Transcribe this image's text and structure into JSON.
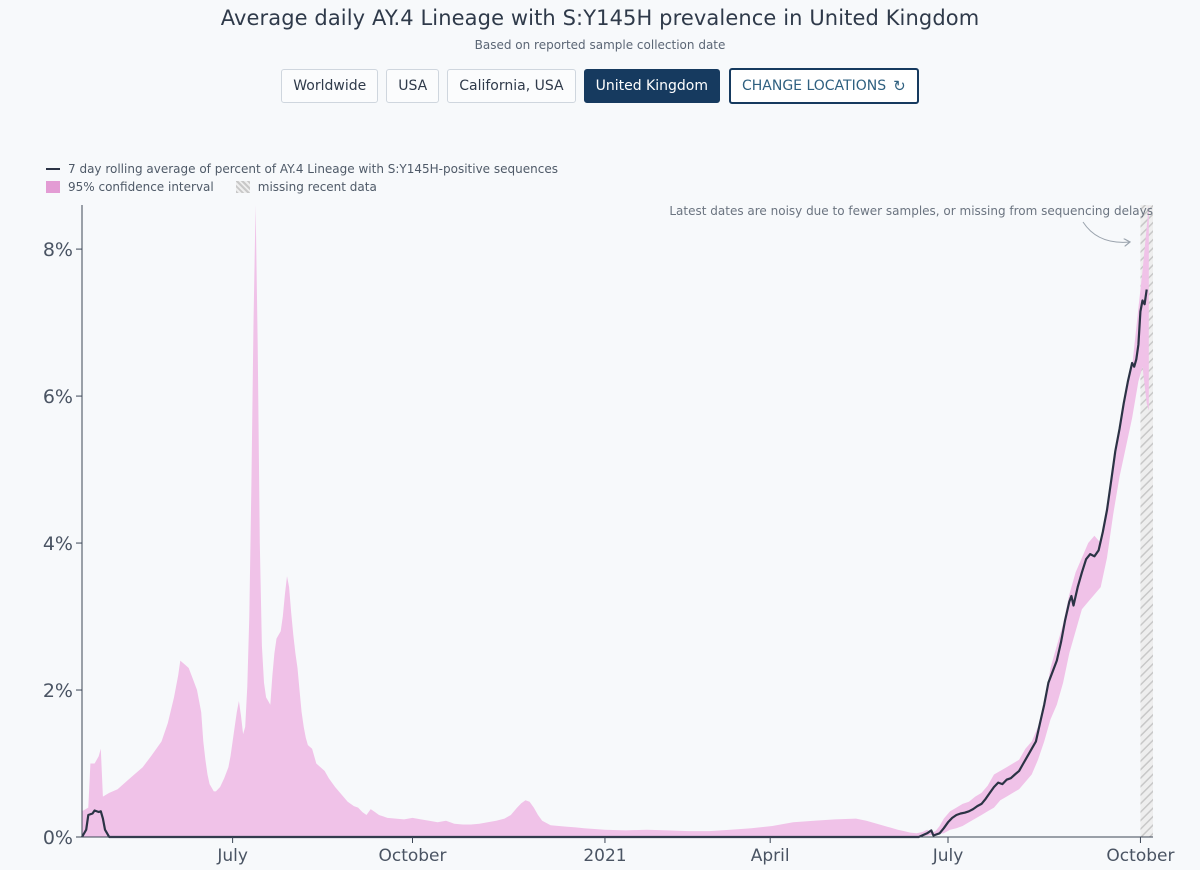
{
  "header": {
    "title": "Average daily AY.4 Lineage with S:Y145H prevalence in United Kingdom",
    "subtitle": "Based on reported sample collection date"
  },
  "locations": {
    "items": [
      "Worldwide",
      "USA",
      "California, USA",
      "United Kingdom"
    ],
    "selected": "United Kingdom",
    "change_label": "CHANGE LOCATIONS",
    "change_icon": "refresh-icon"
  },
  "legend": {
    "line_label": "7 day rolling average of percent of AY.4 Lineage with S:Y145H-positive sequences",
    "ci_label": "95% confidence interval",
    "missing_label": "missing recent data"
  },
  "colors": {
    "line": "#2b3345",
    "ci_fill": "#f0c2e8",
    "active_button": "#163a5f",
    "hatch": "#c8c8c8"
  },
  "chart_data": {
    "type": "area",
    "title": "Average daily AY.4 Lineage with S:Y145H prevalence in United Kingdom",
    "ylabel": "",
    "xlabel": "",
    "ylim": [
      0,
      8.6
    ],
    "y_ticks": [
      0,
      2,
      4,
      6,
      8
    ],
    "y_tick_suffix": "%",
    "x_range_days": [
      0,
      512
    ],
    "x_ticks": [
      {
        "day": 72,
        "label": "July"
      },
      {
        "day": 158,
        "label": "October"
      },
      {
        "day": 250,
        "label": "2021"
      },
      {
        "day": 329,
        "label": "April"
      },
      {
        "day": 414,
        "label": "July"
      },
      {
        "day": 506,
        "label": "October"
      }
    ],
    "annotation": "Latest dates are noisy due to fewer samples, or missing from sequencing delays",
    "missing_data_start_day": 506,
    "ci_upper": [
      [
        0,
        0.35
      ],
      [
        3,
        0.4
      ],
      [
        4,
        1.0
      ],
      [
        6,
        1.0
      ],
      [
        8,
        1.1
      ],
      [
        9,
        1.2
      ],
      [
        10,
        0.55
      ],
      [
        13,
        0.6
      ],
      [
        17,
        0.65
      ],
      [
        21,
        0.75
      ],
      [
        25,
        0.85
      ],
      [
        29,
        0.95
      ],
      [
        33,
        1.1
      ],
      [
        38,
        1.3
      ],
      [
        41,
        1.55
      ],
      [
        44,
        1.9
      ],
      [
        46,
        2.2
      ],
      [
        47,
        2.4
      ],
      [
        49,
        2.35
      ],
      [
        51,
        2.3
      ],
      [
        53,
        2.15
      ],
      [
        55,
        2.0
      ],
      [
        57,
        1.7
      ],
      [
        58,
        1.3
      ],
      [
        59,
        1.05
      ],
      [
        60,
        0.85
      ],
      [
        61,
        0.72
      ],
      [
        63,
        0.62
      ],
      [
        64,
        0.62
      ],
      [
        66,
        0.68
      ],
      [
        68,
        0.8
      ],
      [
        70,
        0.95
      ],
      [
        71,
        1.1
      ],
      [
        72,
        1.3
      ],
      [
        73,
        1.5
      ],
      [
        74,
        1.7
      ],
      [
        75,
        1.85
      ],
      [
        76,
        1.65
      ],
      [
        77,
        1.4
      ],
      [
        78,
        1.5
      ],
      [
        79,
        2.05
      ],
      [
        80,
        3.0
      ],
      [
        81,
        4.8
      ],
      [
        82,
        7.0
      ],
      [
        83,
        8.6
      ],
      [
        84,
        6.7
      ],
      [
        85,
        4.0
      ],
      [
        86,
        2.6
      ],
      [
        87,
        2.1
      ],
      [
        88,
        1.9
      ],
      [
        89,
        1.85
      ],
      [
        90,
        1.8
      ],
      [
        91,
        2.2
      ],
      [
        92,
        2.5
      ],
      [
        93,
        2.7
      ],
      [
        94,
        2.75
      ],
      [
        95,
        2.8
      ],
      [
        96,
        3.0
      ],
      [
        97,
        3.3
      ],
      [
        98,
        3.55
      ],
      [
        99,
        3.4
      ],
      [
        100,
        3.05
      ],
      [
        101,
        2.75
      ],
      [
        102,
        2.5
      ],
      [
        103,
        2.3
      ],
      [
        104,
        2.0
      ],
      [
        105,
        1.7
      ],
      [
        106,
        1.5
      ],
      [
        107,
        1.35
      ],
      [
        108,
        1.25
      ],
      [
        110,
        1.2
      ],
      [
        112,
        1.0
      ],
      [
        114,
        0.95
      ],
      [
        116,
        0.9
      ],
      [
        118,
        0.8
      ],
      [
        121,
        0.68
      ],
      [
        124,
        0.58
      ],
      [
        127,
        0.48
      ],
      [
        130,
        0.42
      ],
      [
        132,
        0.4
      ],
      [
        134,
        0.34
      ],
      [
        136,
        0.3
      ],
      [
        138,
        0.38
      ],
      [
        140,
        0.34
      ],
      [
        142,
        0.3
      ],
      [
        144,
        0.28
      ],
      [
        146,
        0.26
      ],
      [
        150,
        0.25
      ],
      [
        154,
        0.24
      ],
      [
        158,
        0.26
      ],
      [
        162,
        0.24
      ],
      [
        166,
        0.22
      ],
      [
        170,
        0.2
      ],
      [
        174,
        0.22
      ],
      [
        178,
        0.18
      ],
      [
        182,
        0.17
      ],
      [
        186,
        0.17
      ],
      [
        190,
        0.18
      ],
      [
        194,
        0.2
      ],
      [
        198,
        0.22
      ],
      [
        202,
        0.25
      ],
      [
        205,
        0.3
      ],
      [
        208,
        0.4
      ],
      [
        210,
        0.46
      ],
      [
        212,
        0.5
      ],
      [
        214,
        0.48
      ],
      [
        216,
        0.4
      ],
      [
        218,
        0.3
      ],
      [
        220,
        0.22
      ],
      [
        224,
        0.16
      ],
      [
        228,
        0.15
      ],
      [
        232,
        0.14
      ],
      [
        236,
        0.13
      ],
      [
        240,
        0.12
      ],
      [
        250,
        0.1
      ],
      [
        260,
        0.09
      ],
      [
        270,
        0.1
      ],
      [
        280,
        0.09
      ],
      [
        290,
        0.08
      ],
      [
        300,
        0.08
      ],
      [
        310,
        0.1
      ],
      [
        320,
        0.12
      ],
      [
        330,
        0.15
      ],
      [
        340,
        0.2
      ],
      [
        350,
        0.22
      ],
      [
        360,
        0.24
      ],
      [
        370,
        0.25
      ],
      [
        375,
        0.22
      ],
      [
        380,
        0.18
      ],
      [
        385,
        0.14
      ],
      [
        390,
        0.1
      ],
      [
        393,
        0.08
      ],
      [
        396,
        0.06
      ],
      [
        399,
        0.05
      ],
      [
        402,
        0.07
      ],
      [
        404,
        0.1
      ],
      [
        406,
        0.06
      ],
      [
        408,
        0.08
      ],
      [
        410,
        0.15
      ],
      [
        412,
        0.25
      ],
      [
        415,
        0.35
      ],
      [
        418,
        0.4
      ],
      [
        421,
        0.45
      ],
      [
        424,
        0.48
      ],
      [
        427,
        0.55
      ],
      [
        430,
        0.6
      ],
      [
        433,
        0.7
      ],
      [
        436,
        0.85
      ],
      [
        439,
        0.9
      ],
      [
        442,
        0.95
      ],
      [
        445,
        1.0
      ],
      [
        448,
        1.05
      ],
      [
        451,
        1.2
      ],
      [
        454,
        1.3
      ],
      [
        457,
        1.5
      ],
      [
        460,
        1.8
      ],
      [
        463,
        2.3
      ],
      [
        466,
        2.6
      ],
      [
        469,
        2.9
      ],
      [
        472,
        3.3
      ],
      [
        475,
        3.6
      ],
      [
        478,
        3.8
      ],
      [
        481,
        4.0
      ],
      [
        484,
        4.1
      ],
      [
        487,
        4.0
      ],
      [
        490,
        4.4
      ],
      [
        493,
        5.0
      ],
      [
        496,
        5.5
      ],
      [
        499,
        6.0
      ],
      [
        502,
        6.4
      ],
      [
        505,
        7.2
      ],
      [
        507,
        7.7
      ],
      [
        509,
        8.3
      ],
      [
        510,
        8.6
      ]
    ],
    "ci_lower": [
      [
        0,
        0
      ],
      [
        4,
        0
      ],
      [
        10,
        0
      ],
      [
        20,
        0
      ],
      [
        40,
        0
      ],
      [
        80,
        0
      ],
      [
        120,
        0
      ],
      [
        160,
        0
      ],
      [
        200,
        0
      ],
      [
        240,
        0
      ],
      [
        280,
        0
      ],
      [
        320,
        0
      ],
      [
        360,
        0
      ],
      [
        400,
        0
      ],
      [
        412,
        0.05
      ],
      [
        415,
        0.1
      ],
      [
        418,
        0.12
      ],
      [
        421,
        0.15
      ],
      [
        424,
        0.2
      ],
      [
        427,
        0.25
      ],
      [
        430,
        0.3
      ],
      [
        433,
        0.35
      ],
      [
        436,
        0.4
      ],
      [
        439,
        0.5
      ],
      [
        442,
        0.55
      ],
      [
        445,
        0.6
      ],
      [
        448,
        0.65
      ],
      [
        451,
        0.75
      ],
      [
        454,
        0.85
      ],
      [
        457,
        1.05
      ],
      [
        460,
        1.3
      ],
      [
        463,
        1.6
      ],
      [
        466,
        1.8
      ],
      [
        469,
        2.1
      ],
      [
        472,
        2.5
      ],
      [
        475,
        2.8
      ],
      [
        478,
        3.1
      ],
      [
        481,
        3.2
      ],
      [
        484,
        3.3
      ],
      [
        487,
        3.4
      ],
      [
        490,
        3.8
      ],
      [
        493,
        4.4
      ],
      [
        496,
        4.9
      ],
      [
        499,
        5.3
      ],
      [
        502,
        5.7
      ],
      [
        505,
        6.2
      ],
      [
        507,
        6.4
      ],
      [
        509,
        5.9
      ],
      [
        510,
        5.8
      ]
    ],
    "series": [
      {
        "name": "7 day rolling average of percent of AY.4 Lineage with S:Y145H-positive sequences",
        "values": [
          [
            0,
            0
          ],
          [
            2,
            0.1
          ],
          [
            3,
            0.3
          ],
          [
            5,
            0.32
          ],
          [
            6,
            0.36
          ],
          [
            8,
            0.34
          ],
          [
            9,
            0.35
          ],
          [
            10,
            0.25
          ],
          [
            11,
            0.1
          ],
          [
            12,
            0.05
          ],
          [
            13,
            0
          ],
          [
            20,
            0
          ],
          [
            40,
            0
          ],
          [
            60,
            0
          ],
          [
            80,
            0
          ],
          [
            100,
            0
          ],
          [
            120,
            0
          ],
          [
            160,
            0
          ],
          [
            200,
            0
          ],
          [
            240,
            0
          ],
          [
            280,
            0
          ],
          [
            320,
            0
          ],
          [
            360,
            0
          ],
          [
            400,
            0
          ],
          [
            404,
            0.05
          ],
          [
            406,
            0.09
          ],
          [
            407,
            0.02
          ],
          [
            410,
            0.05
          ],
          [
            412,
            0.12
          ],
          [
            414,
            0.2
          ],
          [
            416,
            0.26
          ],
          [
            418,
            0.3
          ],
          [
            420,
            0.32
          ],
          [
            422,
            0.33
          ],
          [
            424,
            0.35
          ],
          [
            426,
            0.38
          ],
          [
            428,
            0.42
          ],
          [
            430,
            0.45
          ],
          [
            432,
            0.52
          ],
          [
            434,
            0.6
          ],
          [
            436,
            0.68
          ],
          [
            438,
            0.74
          ],
          [
            440,
            0.72
          ],
          [
            442,
            0.78
          ],
          [
            444,
            0.8
          ],
          [
            446,
            0.85
          ],
          [
            448,
            0.9
          ],
          [
            450,
            1.0
          ],
          [
            452,
            1.1
          ],
          [
            454,
            1.2
          ],
          [
            456,
            1.3
          ],
          [
            458,
            1.55
          ],
          [
            460,
            1.8
          ],
          [
            462,
            2.1
          ],
          [
            464,
            2.25
          ],
          [
            466,
            2.4
          ],
          [
            468,
            2.65
          ],
          [
            470,
            2.95
          ],
          [
            472,
            3.2
          ],
          [
            473,
            3.28
          ],
          [
            474,
            3.15
          ],
          [
            476,
            3.4
          ],
          [
            478,
            3.6
          ],
          [
            480,
            3.78
          ],
          [
            482,
            3.85
          ],
          [
            484,
            3.82
          ],
          [
            486,
            3.9
          ],
          [
            488,
            4.15
          ],
          [
            490,
            4.45
          ],
          [
            492,
            4.85
          ],
          [
            494,
            5.25
          ],
          [
            496,
            5.55
          ],
          [
            498,
            5.9
          ],
          [
            500,
            6.2
          ],
          [
            502,
            6.45
          ],
          [
            503,
            6.4
          ],
          [
            504,
            6.5
          ],
          [
            505,
            6.7
          ],
          [
            506,
            7.15
          ],
          [
            507,
            7.3
          ],
          [
            508,
            7.25
          ],
          [
            509,
            7.45
          ]
        ]
      }
    ]
  }
}
